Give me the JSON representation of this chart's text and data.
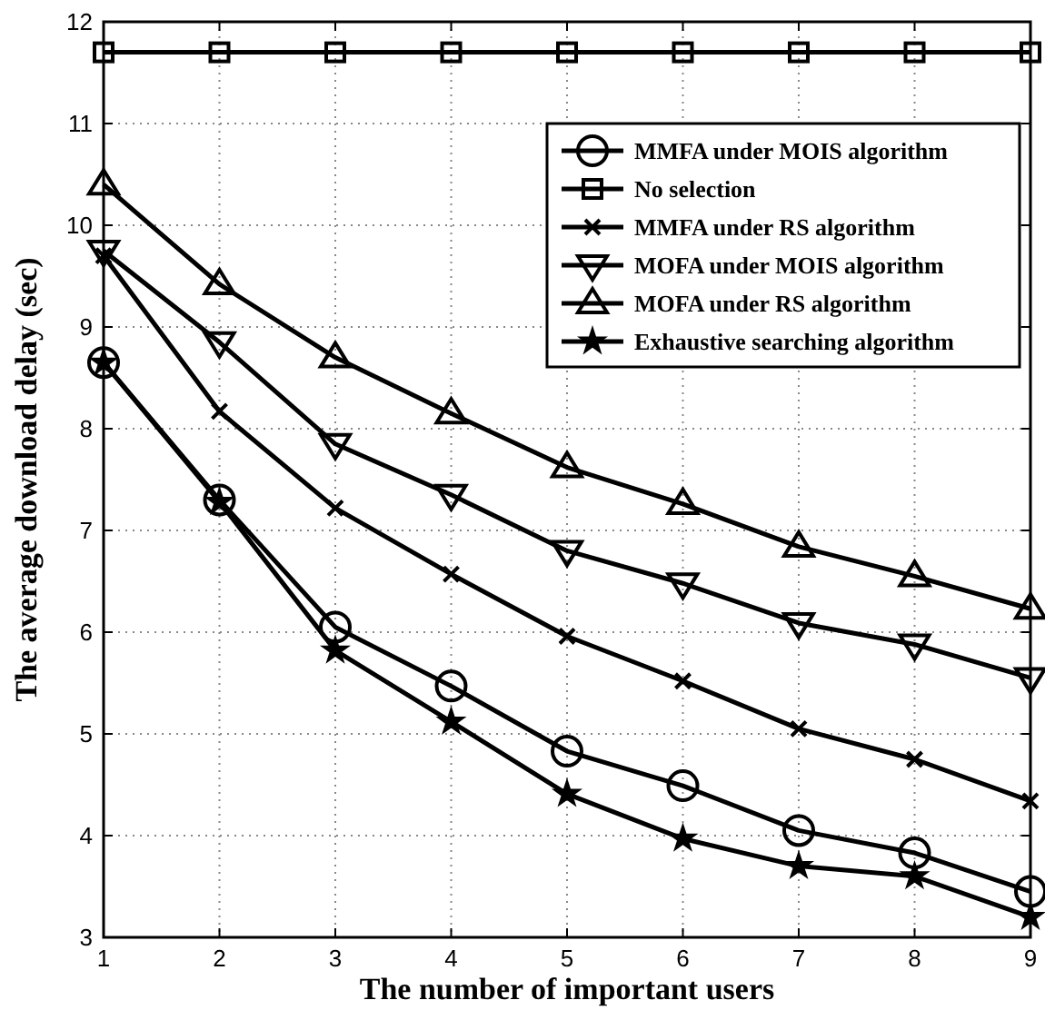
{
  "chart_data": {
    "type": "line",
    "xlabel": "The number of important users",
    "ylabel": "The average download delay (sec)",
    "x": [
      1,
      2,
      3,
      4,
      5,
      6,
      7,
      8,
      9
    ],
    "xlim": [
      1,
      9
    ],
    "xticks": [
      1,
      2,
      3,
      4,
      5,
      6,
      7,
      8,
      9
    ],
    "ylim": [
      3,
      12
    ],
    "yticks": [
      3,
      4,
      5,
      6,
      7,
      8,
      9,
      10,
      11,
      12
    ],
    "grid": true,
    "legend": "top right",
    "line_style": "solid",
    "series": [
      {
        "name": "MMFA under MOIS algorithm",
        "color": "#000000",
        "marker": "circle",
        "values": [
          8.65,
          7.3,
          6.05,
          5.47,
          4.83,
          4.49,
          4.05,
          3.83,
          3.45
        ]
      },
      {
        "name": "No selection",
        "color": "#000000",
        "marker": "square",
        "values": [
          11.7,
          11.7,
          11.7,
          11.7,
          11.7,
          11.7,
          11.7,
          11.7,
          11.7
        ]
      },
      {
        "name": "MMFA under RS algorithm",
        "color": "#000000",
        "marker": "cross",
        "values": [
          9.7,
          8.17,
          7.22,
          6.57,
          5.96,
          5.52,
          5.05,
          4.75,
          4.34
        ]
      },
      {
        "name": "MOFA under MOIS algorithm",
        "color": "#000000",
        "marker": "triangle-down",
        "values": [
          9.75,
          8.85,
          7.85,
          7.35,
          6.8,
          6.48,
          6.09,
          5.88,
          5.55
        ]
      },
      {
        "name": "MOFA under RS algorithm",
        "color": "#000000",
        "marker": "triangle",
        "values": [
          10.4,
          9.42,
          8.7,
          8.15,
          7.62,
          7.26,
          6.84,
          6.55,
          6.23
        ]
      },
      {
        "name": "Exhaustive searching algorithm",
        "color": "#000000",
        "marker": "star",
        "values": [
          8.65,
          7.28,
          5.82,
          5.12,
          4.41,
          3.97,
          3.7,
          3.6,
          3.2
        ]
      }
    ]
  }
}
